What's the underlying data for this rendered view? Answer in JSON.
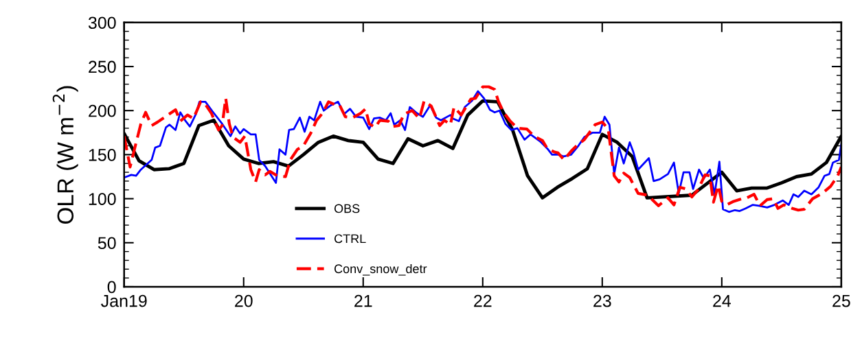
{
  "chart_data": {
    "type": "line",
    "ylabel": "OLR (W m$^{−2}$)",
    "xlim": [
      19,
      25
    ],
    "xticks": [
      {
        "value": 19,
        "label": "Jan19"
      },
      20,
      21,
      22,
      23,
      24,
      25
    ],
    "ylim": [
      0,
      300
    ],
    "yticks": [
      0,
      50,
      100,
      150,
      200,
      250,
      300
    ],
    "grid": false,
    "legend": "bottom left",
    "marker": "none",
    "series": [
      {
        "name": "OBS",
        "color": "#000000",
        "line_style": "solid",
        "x": [
          19,
          19.125,
          19.25,
          19.375,
          19.5,
          19.625,
          19.75,
          19.875,
          20,
          20.125,
          20.25,
          20.375,
          20.5,
          20.625,
          20.75,
          20.875,
          21,
          21.125,
          21.25,
          21.375,
          21.5,
          21.625,
          21.75,
          21.875,
          22,
          22.125,
          22.25,
          22.375,
          22.5,
          22.625,
          22.75,
          22.875,
          23,
          23.125,
          23.25,
          23.375,
          23.75,
          24,
          24.125,
          24.25,
          24.375,
          24.5,
          24.625,
          24.75,
          24.875,
          25
        ],
        "values": [
          174,
          143,
          133,
          134,
          140,
          183,
          189,
          160,
          145,
          140,
          142,
          137,
          150,
          164,
          171,
          166,
          164,
          145,
          140,
          168,
          160,
          166,
          157,
          195,
          211,
          210,
          178,
          126,
          101,
          113,
          123,
          134,
          173,
          164,
          148,
          101,
          104,
          130,
          109,
          112,
          112,
          118,
          125,
          128,
          141,
          171
        ]
      },
      {
        "name": "CTRL",
        "color": "#0000ff",
        "line_style": "solid",
        "x": [
          19.0,
          19.06,
          19.1,
          19.14,
          19.23,
          19.26,
          19.3,
          19.35,
          19.38,
          19.43,
          19.47,
          19.51,
          19.55,
          19.6,
          19.63,
          19.68,
          19.74,
          19.82,
          19.89,
          19.93,
          19.97,
          20.0,
          20.06,
          20.1,
          20.13,
          20.18,
          20.27,
          20.3,
          20.35,
          20.38,
          20.42,
          20.47,
          20.51,
          20.55,
          20.59,
          20.64,
          20.67,
          20.73,
          20.79,
          20.84,
          20.89,
          20.94,
          21.0,
          21.05,
          21.09,
          21.14,
          21.19,
          21.23,
          21.26,
          21.31,
          21.35,
          21.39,
          21.45,
          21.5,
          21.56,
          21.61,
          21.65,
          21.73,
          21.75,
          21.8,
          21.85,
          21.91,
          21.96,
          22.01,
          22.06,
          22.1,
          22.14,
          22.19,
          22.24,
          22.29,
          22.35,
          22.4,
          22.48,
          22.54,
          22.58,
          22.63,
          22.68,
          22.74,
          22.8,
          22.85,
          22.92,
          22.98,
          23.02,
          23.06,
          23.1,
          23.14,
          23.18,
          23.23,
          23.26,
          23.3,
          23.39,
          23.43,
          23.48,
          23.55,
          23.6,
          23.64,
          23.68,
          23.73,
          23.76,
          23.81,
          23.85,
          23.9,
          23.94,
          23.98,
          24.01,
          24.06,
          24.11,
          24.15,
          24.2,
          24.26,
          24.31,
          24.38,
          24.44,
          24.51,
          24.56,
          24.6,
          24.64,
          24.69,
          24.75,
          24.81,
          24.86,
          24.9,
          24.93,
          24.98,
          25.0
        ],
        "values": [
          124,
          127,
          126,
          133,
          144,
          158,
          160,
          181,
          184,
          178,
          198,
          189,
          182,
          196,
          210,
          210,
          199,
          185,
          171,
          182,
          174,
          179,
          173,
          173,
          144,
          137,
          118,
          156,
          150,
          178,
          179,
          192,
          176,
          193,
          189,
          210,
          200,
          206,
          210,
          196,
          202,
          193,
          192,
          179,
          191,
          192,
          189,
          197,
          184,
          189,
          178,
          204,
          197,
          193,
          206,
          192,
          189,
          195,
          191,
          188,
          204,
          211,
          222,
          214,
          201,
          198,
          200,
          185,
          178,
          180,
          167,
          173,
          165,
          157,
          150,
          150,
          148,
          150,
          160,
          170,
          175,
          175,
          193,
          184,
          128,
          158,
          140,
          164,
          153,
          133,
          146,
          120,
          122,
          128,
          141,
          106,
          130,
          130,
          111,
          133,
          123,
          133,
          105,
          142,
          88,
          85,
          87,
          86,
          89,
          93,
          92,
          90,
          93,
          98,
          93,
          105,
          102,
          109,
          105,
          113,
          126,
          128,
          141,
          144,
          162
        ]
      },
      {
        "name": "Conv_snow_detr",
        "color": "#ff0000",
        "line_style": "dashed",
        "x": [
          19.0,
          19.05,
          19.09,
          19.14,
          19.18,
          19.23,
          19.28,
          19.43,
          19.47,
          19.53,
          19.58,
          19.64,
          19.67,
          19.73,
          19.79,
          19.82,
          19.85,
          19.88,
          19.91,
          19.97,
          20.01,
          20.06,
          20.1,
          20.13,
          20.18,
          20.22,
          20.28,
          20.35,
          20.39,
          20.45,
          20.5,
          20.56,
          20.61,
          20.66,
          20.71,
          20.76,
          20.8,
          20.85,
          20.91,
          20.98,
          21.02,
          21.05,
          21.1,
          21.14,
          21.21,
          21.25,
          21.3,
          21.34,
          21.41,
          21.47,
          21.51,
          21.57,
          21.64,
          21.68,
          21.73,
          21.76,
          21.82,
          21.86,
          21.9,
          21.94,
          22.0,
          22.05,
          22.1,
          22.13,
          22.17,
          22.23,
          22.29,
          22.37,
          22.43,
          22.5,
          22.54,
          22.6,
          22.63,
          22.68,
          22.74,
          22.8,
          22.85,
          22.94,
          23.0,
          23.05,
          23.1,
          23.14,
          23.18,
          23.23,
          23.3,
          23.38,
          23.47,
          23.55,
          23.6,
          23.65,
          23.7,
          23.75,
          23.8,
          23.86,
          23.9,
          23.93,
          23.97,
          24.0,
          24.04,
          24.1,
          24.17,
          24.21,
          24.27,
          24.32,
          24.38,
          24.43,
          24.47,
          24.52,
          24.59,
          24.64,
          24.69,
          24.76,
          24.84,
          24.91,
          24.97,
          25.0
        ],
        "values": [
          171,
          136,
          158,
          185,
          198,
          183,
          187,
          201,
          188,
          195,
          191,
          210,
          209,
          197,
          178,
          183,
          214,
          185,
          170,
          164,
          171,
          133,
          119,
          133,
          127,
          131,
          126,
          125,
          144,
          156,
          160,
          174,
          189,
          197,
          210,
          207,
          207,
          193,
          192,
          197,
          202,
          185,
          181,
          189,
          188,
          182,
          183,
          196,
          200,
          191,
          211,
          205,
          183,
          189,
          184,
          204,
          195,
          204,
          213,
          214,
          227,
          227,
          224,
          211,
          199,
          188,
          180,
          179,
          171,
          166,
          157,
          153,
          152,
          144,
          154,
          162,
          167,
          184,
          187,
          179,
          126,
          119,
          129,
          124,
          106,
          104,
          92,
          101,
          93,
          113,
          111,
          102,
          110,
          127,
          126,
          96,
          115,
          97,
          93,
          97,
          100,
          101,
          105,
          92,
          99,
          100,
          89,
          93,
          89,
          87,
          88,
          100,
          106,
          114,
          126,
          136
        ]
      }
    ]
  }
}
